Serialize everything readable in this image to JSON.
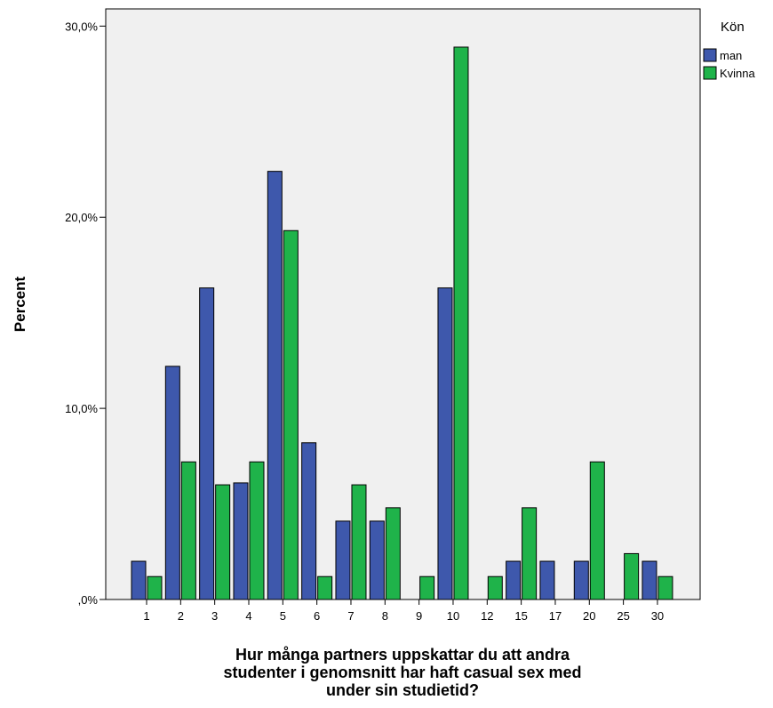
{
  "chart_data": {
    "type": "bar",
    "ylabel": "Percent",
    "xlabel_lines": [
      "Hur många partners uppskattar du att andra",
      "studenter i genomsnitt har haft casual sex med",
      "under sin studietid?"
    ],
    "categories": [
      "1",
      "2",
      "3",
      "4",
      "5",
      "6",
      "7",
      "8",
      "9",
      "10",
      "12",
      "15",
      "17",
      "20",
      "25",
      "30"
    ],
    "series": [
      {
        "name": "man",
        "color": "#3e58ac",
        "values": [
          2.0,
          12.2,
          16.3,
          6.1,
          22.4,
          8.2,
          4.1,
          4.1,
          0,
          16.3,
          0,
          2.0,
          2.0,
          2.0,
          0,
          2.0
        ]
      },
      {
        "name": "Kvinna",
        "color": "#1fb34a",
        "values": [
          1.2,
          7.2,
          6.0,
          7.2,
          19.3,
          1.2,
          6.0,
          4.8,
          1.2,
          28.9,
          1.2,
          4.8,
          0,
          7.2,
          2.4,
          1.2
        ]
      }
    ],
    "ylim": [
      0,
      30.9
    ],
    "yticks": [
      0,
      10,
      20,
      30
    ],
    "ytick_labels": [
      ",0%",
      "10,0%",
      "20,0%",
      "30,0%"
    ],
    "legend": {
      "title": "Kön",
      "position": "right-top"
    },
    "plot_background": "#f0f0f0",
    "grid": false
  }
}
